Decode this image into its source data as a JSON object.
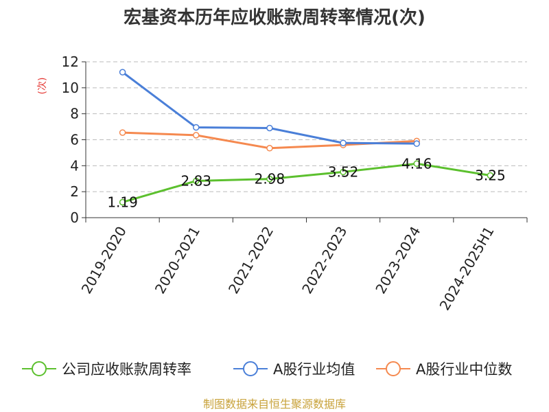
{
  "chart_data": {
    "type": "line",
    "title": "宏基资本历年应收账款周转率情况(次)",
    "xlabel": "",
    "ylabel": "(次)",
    "ylim": [
      0,
      12
    ],
    "yticks": [
      0,
      2,
      4,
      6,
      8,
      10,
      12
    ],
    "categories": [
      "2019-2020",
      "2020-2021",
      "2021-2022",
      "2022-2023",
      "2023-2024",
      "2024-2025H1"
    ],
    "grid": true,
    "legend_position": "bottom",
    "series": [
      {
        "name": "公司应收账款周转率",
        "color": "#5cc02e",
        "values": [
          1.19,
          2.83,
          2.98,
          3.52,
          4.16,
          3.25
        ],
        "labels": [
          "1.19",
          "2.83",
          "2.98",
          "3.52",
          "4.16",
          "3.25"
        ]
      },
      {
        "name": "A股行业均值",
        "color": "#4a7fd8",
        "values": [
          11.2,
          6.95,
          6.9,
          5.75,
          5.7,
          null
        ]
      },
      {
        "name": "A股行业中位数",
        "color": "#f5894f",
        "values": [
          6.55,
          6.35,
          5.35,
          5.6,
          5.9,
          null
        ]
      }
    ]
  },
  "footer": {
    "source": "制图数据来自恒生聚源数据库"
  }
}
